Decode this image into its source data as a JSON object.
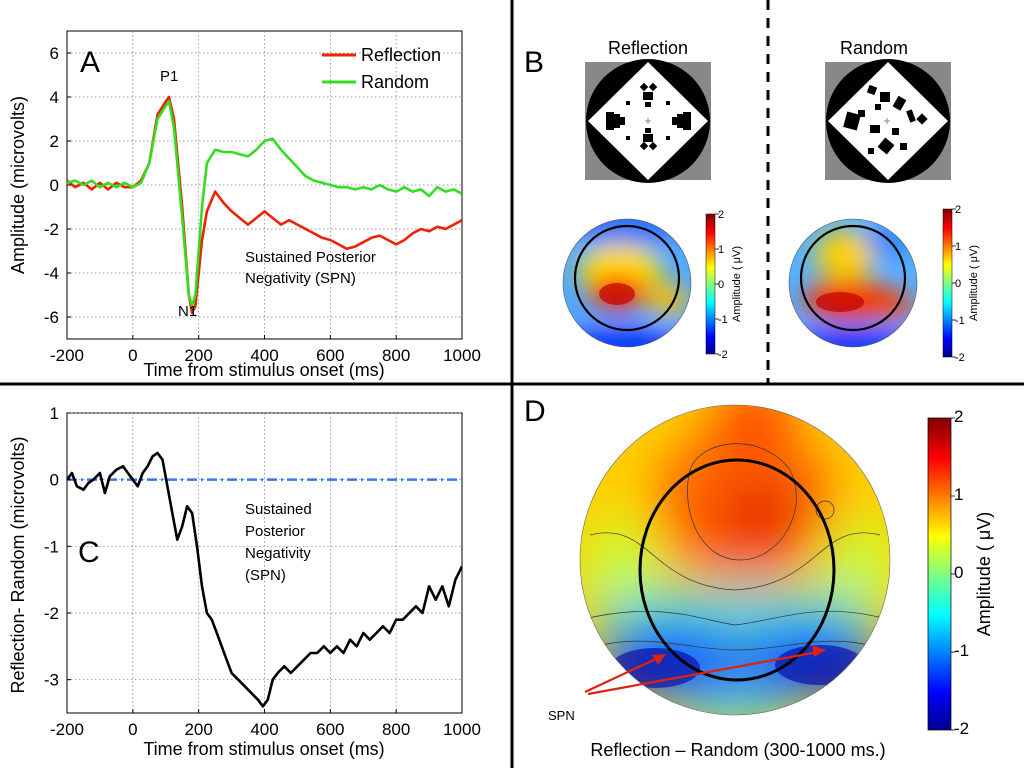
{
  "panels": {
    "a": "A",
    "b": "B",
    "c": "C",
    "d": "D"
  },
  "chart_data": [
    {
      "id": "A",
      "type": "line",
      "xlabel": "Time from stimulus onset (ms)",
      "ylabel": "Amplitude (microvolts)",
      "xlim": [
        -200,
        1000
      ],
      "ylim": [
        -7,
        7
      ],
      "xticks": [
        "-200",
        "0",
        "200",
        "400",
        "600",
        "800",
        "1000"
      ],
      "yticks": [
        "6",
        "4",
        "2",
        "0",
        "-2",
        "-4",
        "-6"
      ],
      "grid": true,
      "legend_position": "top-right",
      "series": [
        {
          "name": "Reflection",
          "color": "#ee2200",
          "x": [
            -200,
            -175,
            -150,
            -125,
            -100,
            -75,
            -50,
            -25,
            0,
            25,
            50,
            75,
            100,
            110,
            125,
            150,
            170,
            180,
            190,
            200,
            210,
            225,
            250,
            275,
            300,
            325,
            350,
            375,
            400,
            425,
            450,
            475,
            500,
            525,
            550,
            575,
            600,
            625,
            650,
            675,
            700,
            725,
            750,
            775,
            800,
            825,
            850,
            875,
            900,
            925,
            950,
            975,
            1000
          ],
          "values": [
            0.2,
            -0.1,
            0.1,
            -0.2,
            0.1,
            -0.2,
            0.1,
            -0.1,
            -0.1,
            0.2,
            1.0,
            3.2,
            3.8,
            4.0,
            3.0,
            -1.0,
            -5.0,
            -5.8,
            -5.5,
            -4.0,
            -2.5,
            -1.2,
            -0.3,
            -0.8,
            -1.2,
            -1.5,
            -1.8,
            -1.5,
            -1.2,
            -1.5,
            -1.8,
            -1.6,
            -1.8,
            -2.0,
            -2.2,
            -2.4,
            -2.5,
            -2.7,
            -2.9,
            -2.8,
            -2.6,
            -2.4,
            -2.3,
            -2.5,
            -2.7,
            -2.5,
            -2.2,
            -2.0,
            -2.1,
            -1.9,
            -2.0,
            -1.8,
            -1.6
          ]
        },
        {
          "name": "Random",
          "color": "#33dd22",
          "x": [
            -200,
            -175,
            -150,
            -125,
            -100,
            -75,
            -50,
            -25,
            0,
            25,
            50,
            75,
            100,
            110,
            125,
            150,
            170,
            180,
            190,
            200,
            210,
            225,
            250,
            275,
            300,
            325,
            350,
            375,
            400,
            425,
            450,
            475,
            500,
            525,
            550,
            575,
            600,
            625,
            650,
            675,
            700,
            725,
            750,
            775,
            800,
            825,
            850,
            875,
            900,
            925,
            950,
            975,
            1000
          ],
          "values": [
            0.1,
            0.2,
            0.0,
            0.2,
            -0.1,
            0.1,
            -0.1,
            0.1,
            -0.1,
            0.1,
            1.0,
            3.0,
            3.6,
            3.8,
            2.6,
            -1.5,
            -5.0,
            -5.5,
            -5.0,
            -3.0,
            -1.0,
            1.0,
            1.6,
            1.5,
            1.5,
            1.4,
            1.3,
            1.6,
            2.0,
            2.1,
            1.6,
            1.2,
            0.8,
            0.4,
            0.2,
            0.1,
            0.0,
            -0.1,
            -0.1,
            -0.2,
            -0.1,
            -0.2,
            0.0,
            -0.2,
            -0.3,
            -0.1,
            -0.3,
            -0.2,
            -0.5,
            -0.1,
            -0.3,
            -0.2,
            -0.4
          ]
        }
      ],
      "annotations": [
        "P1",
        "N1",
        "Sustained Posterior",
        "Negativity (SPN)"
      ]
    },
    {
      "id": "C",
      "type": "line",
      "xlabel": "Time from stimulus onset (ms)",
      "ylabel": "Reflection- Random (microvolts)",
      "xlim": [
        -200,
        1000
      ],
      "ylim": [
        -3.5,
        1
      ],
      "xticks": [
        "-200",
        "0",
        "200",
        "400",
        "600",
        "800",
        "1000"
      ],
      "yticks": [
        "1",
        "0",
        "-1",
        "-2",
        "-3"
      ],
      "grid": true,
      "series": [
        {
          "name": "Reflection- Random",
          "color": "#000000",
          "x": [
            -200,
            -185,
            -170,
            -150,
            -135,
            -120,
            -100,
            -85,
            -70,
            -50,
            -30,
            -15,
            0,
            15,
            30,
            45,
            60,
            75,
            90,
            105,
            120,
            135,
            150,
            165,
            180,
            195,
            210,
            225,
            240,
            255,
            270,
            285,
            300,
            320,
            340,
            360,
            380,
            395,
            410,
            425,
            440,
            460,
            480,
            500,
            520,
            540,
            560,
            580,
            600,
            620,
            640,
            660,
            680,
            700,
            720,
            740,
            760,
            780,
            800,
            820,
            840,
            860,
            880,
            900,
            920,
            940,
            960,
            980,
            1000
          ],
          "values": [
            0.0,
            0.1,
            -0.1,
            -0.15,
            -0.05,
            0.0,
            0.1,
            -0.2,
            0.05,
            0.15,
            0.2,
            0.1,
            0.0,
            -0.1,
            0.1,
            0.2,
            0.35,
            0.4,
            0.3,
            -0.1,
            -0.5,
            -0.9,
            -0.7,
            -0.4,
            -0.5,
            -1.0,
            -1.6,
            -2.0,
            -2.1,
            -2.3,
            -2.5,
            -2.7,
            -2.9,
            -3.0,
            -3.1,
            -3.2,
            -3.3,
            -3.4,
            -3.3,
            -3.0,
            -2.9,
            -2.8,
            -2.9,
            -2.8,
            -2.7,
            -2.6,
            -2.6,
            -2.5,
            -2.6,
            -2.5,
            -2.6,
            -2.4,
            -2.5,
            -2.3,
            -2.4,
            -2.3,
            -2.2,
            -2.3,
            -2.1,
            -2.1,
            -2.0,
            -1.9,
            -2.0,
            -1.6,
            -1.8,
            -1.6,
            -1.9,
            -1.5,
            -1.3
          ]
        }
      ],
      "baseline": {
        "y": 0,
        "color": "#3377ee",
        "style": "dash-dot"
      },
      "annotations": [
        "Sustained",
        "Posterior",
        "Negativity",
        "(SPN)"
      ]
    },
    {
      "id": "B",
      "type": "heatmap",
      "maps": [
        {
          "title": "Reflection",
          "hot_region": "posterior-left"
        },
        {
          "title": "Random",
          "hot_region": "posterior-center"
        }
      ],
      "colorbar": {
        "label": "Amplitude ( μV)",
        "ticks": [
          "2",
          "1",
          "0",
          "-1",
          "-2"
        ],
        "range": [
          -2,
          2
        ]
      }
    },
    {
      "id": "D",
      "type": "heatmap",
      "caption": "Reflection – Random (300-1000 ms.)",
      "annotation": "SPN",
      "colorbar": {
        "label": "Amplitude ( μV)",
        "ticks": [
          "2",
          "1",
          "0",
          "-1",
          "-2"
        ],
        "range": [
          -2,
          2
        ]
      }
    }
  ]
}
